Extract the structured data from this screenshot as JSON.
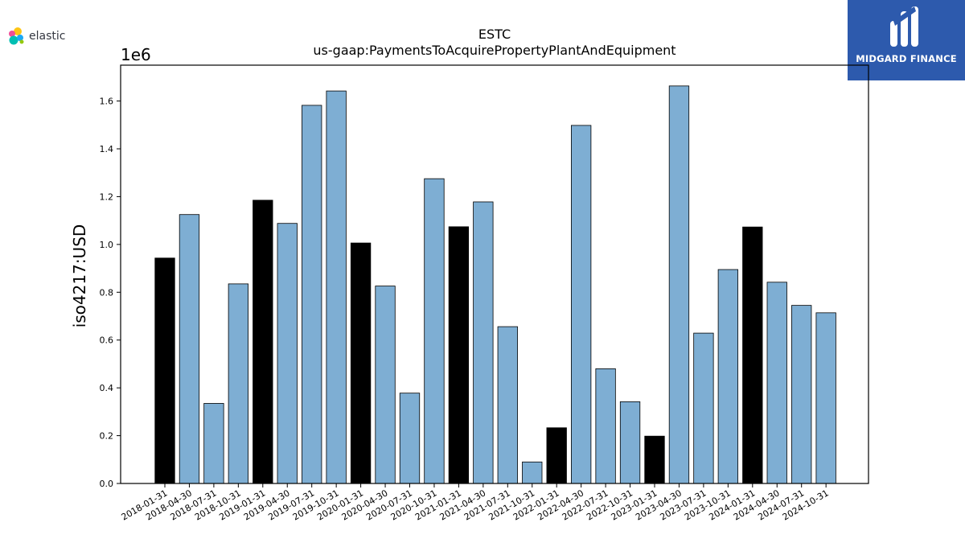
{
  "logos": {
    "elastic": {
      "text": "elastic"
    },
    "midgard": {
      "text": "MIDGARD FINANCE",
      "background": "#2d5aad"
    }
  },
  "chart_data": {
    "type": "bar",
    "title": "ESTC",
    "subtitle": "us-gaap:PaymentsToAcquirePropertyPlantAndEquipment",
    "xlabel": "",
    "ylabel": "iso4217:USD",
    "y_offset_label": "1e6",
    "ylim": [
      0,
      1.75
    ],
    "y_ticks": [
      "0.0",
      "0.2",
      "0.4",
      "0.6",
      "0.8",
      "1.0",
      "1.2",
      "1.4",
      "1.6"
    ],
    "grid": false,
    "colors": {
      "fiscal_year_end": "#000000",
      "quarter": "#7eaed3"
    },
    "categories": [
      "2018-01-31",
      "2018-04-30",
      "2018-07-31",
      "2018-10-31",
      "2019-01-31",
      "2019-04-30",
      "2019-07-31",
      "2019-10-31",
      "2020-01-31",
      "2020-04-30",
      "2020-07-31",
      "2020-10-31",
      "2021-01-31",
      "2021-04-30",
      "2021-07-31",
      "2021-10-31",
      "2022-01-31",
      "2022-04-30",
      "2022-07-31",
      "2022-10-31",
      "2023-01-31",
      "2023-04-30",
      "2023-07-31",
      "2023-10-31",
      "2024-01-31",
      "2024-04-30",
      "2024-07-31",
      "2024-10-31"
    ],
    "values": [
      0.943,
      1.125,
      0.335,
      0.835,
      1.185,
      1.088,
      1.582,
      1.642,
      1.006,
      0.826,
      0.378,
      1.275,
      1.074,
      1.178,
      0.656,
      0.09,
      0.233,
      1.498,
      0.48,
      0.342,
      0.198,
      1.663,
      0.629,
      0.895,
      1.073,
      0.842,
      0.745,
      0.714
    ],
    "fiscal_year_end": [
      true,
      false,
      false,
      false,
      true,
      false,
      false,
      false,
      true,
      false,
      false,
      false,
      true,
      false,
      false,
      false,
      true,
      false,
      false,
      false,
      true,
      false,
      false,
      false,
      true,
      false,
      false,
      false
    ]
  }
}
